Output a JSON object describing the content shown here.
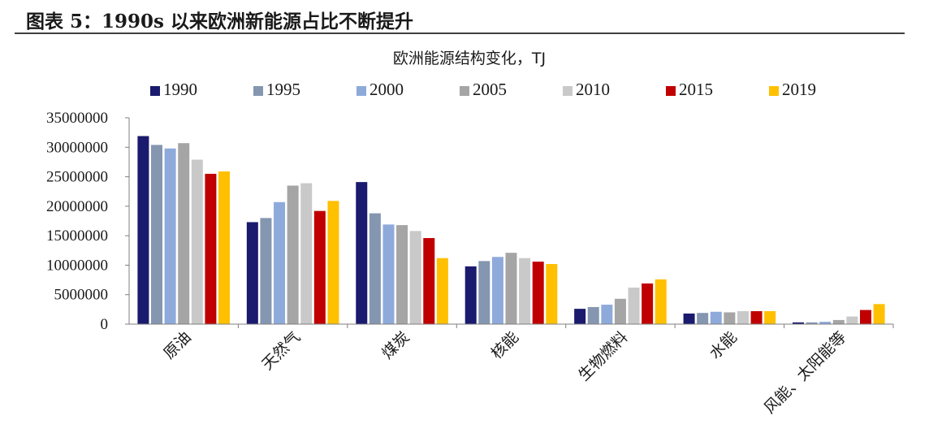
{
  "figure_title": "图表 5：1990s 以来欧洲新能源占比不断提升",
  "chart_data": {
    "type": "bar",
    "title": "欧洲能源结构变化，TJ",
    "categories": [
      "原油",
      "天然气",
      "煤炭",
      "核能",
      "生物燃料",
      "水能",
      "风能、太阳能等"
    ],
    "series": [
      {
        "name": "1990",
        "color": "#1a1a6e",
        "values": [
          31900000,
          17300000,
          24100000,
          9800000,
          2600000,
          1800000,
          300000
        ]
      },
      {
        "name": "1995",
        "color": "#8496b0",
        "values": [
          30400000,
          18000000,
          18800000,
          10700000,
          2900000,
          1900000,
          300000
        ]
      },
      {
        "name": "2000",
        "color": "#8eaadb",
        "values": [
          29800000,
          20700000,
          16900000,
          11400000,
          3300000,
          2100000,
          400000
        ]
      },
      {
        "name": "2005",
        "color": "#a5a5a5",
        "values": [
          30700000,
          23500000,
          16800000,
          12100000,
          4300000,
          2000000,
          700000
        ]
      },
      {
        "name": "2010",
        "color": "#c9c9c9",
        "values": [
          27900000,
          23900000,
          15800000,
          11200000,
          6200000,
          2200000,
          1300000
        ]
      },
      {
        "name": "2015",
        "color": "#c00000",
        "values": [
          25500000,
          19200000,
          14600000,
          10600000,
          6900000,
          2200000,
          2400000
        ]
      },
      {
        "name": "2019",
        "color": "#ffc000",
        "values": [
          25900000,
          20900000,
          11200000,
          10200000,
          7600000,
          2200000,
          3400000
        ]
      }
    ],
    "yticks": [
      "35000000",
      "30000000",
      "25000000",
      "20000000",
      "15000000",
      "10000000",
      "5000000",
      "0"
    ],
    "ylim": [
      0,
      35000000
    ],
    "grid": false,
    "legend": "top"
  }
}
